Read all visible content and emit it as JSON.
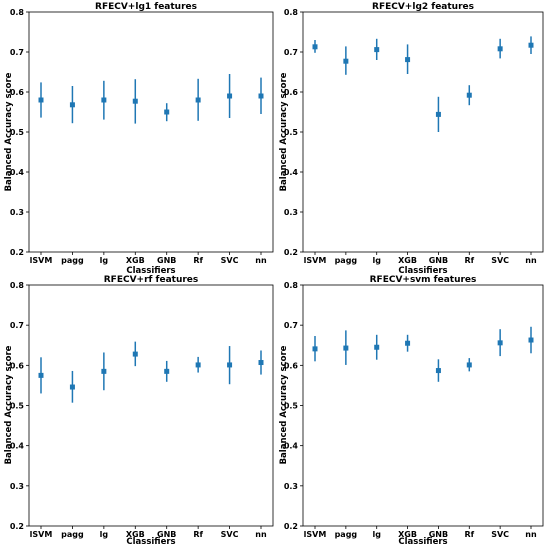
{
  "chart_data": [
    {
      "type": "scatter",
      "title": "RFECV+lg1 features",
      "xlabel": "Classifiers",
      "ylabel": "Balanced Accuracy score",
      "ylim": [
        0.2,
        0.8
      ],
      "yticks": [
        "0.2",
        "0.3",
        "0.4",
        "0.5",
        "0.6",
        "0.7",
        "0.8"
      ],
      "categories": [
        "lSVM",
        "pagg",
        "lg",
        "XGB",
        "GNB",
        "Rf",
        "SVC",
        "nn"
      ],
      "values": [
        0.58,
        0.568,
        0.58,
        0.577,
        0.55,
        0.58,
        0.59,
        0.59
      ],
      "lower": [
        0.536,
        0.522,
        0.531,
        0.521,
        0.527,
        0.528,
        0.535,
        0.545
      ],
      "upper": [
        0.624,
        0.615,
        0.628,
        0.632,
        0.572,
        0.633,
        0.645,
        0.636
      ],
      "color": "#1f77b4",
      "grid": false
    },
    {
      "type": "scatter",
      "title": "RFECV+lg2 features",
      "xlabel": "Classifiers",
      "ylabel": "Balanced Accuracy score",
      "ylim": [
        0.2,
        0.8
      ],
      "yticks": [
        "0.2",
        "0.3",
        "0.4",
        "0.5",
        "0.6",
        "0.7",
        "0.8"
      ],
      "categories": [
        "lSVM",
        "pagg",
        "lg",
        "XGB",
        "GNB",
        "Rf",
        "SVC",
        "nn"
      ],
      "values": [
        0.713,
        0.677,
        0.706,
        0.681,
        0.544,
        0.592,
        0.708,
        0.717
      ],
      "lower": [
        0.698,
        0.643,
        0.68,
        0.645,
        0.5,
        0.567,
        0.684,
        0.695
      ],
      "upper": [
        0.73,
        0.714,
        0.733,
        0.719,
        0.588,
        0.617,
        0.733,
        0.739
      ],
      "color": "#1f77b4",
      "grid": false
    },
    {
      "type": "scatter",
      "title": "RFECV+rf features",
      "xlabel": "Classifiers",
      "ylabel": "Balanced Accuracy score",
      "ylim": [
        0.2,
        0.8
      ],
      "yticks": [
        "0.2",
        "0.3",
        "0.4",
        "0.5",
        "0.6",
        "0.7",
        "0.8"
      ],
      "categories": [
        "lSVM",
        "pagg",
        "lg",
        "XGB",
        "GNB",
        "Rf",
        "SVC",
        "nn"
      ],
      "values": [
        0.575,
        0.546,
        0.585,
        0.628,
        0.585,
        0.601,
        0.601,
        0.607
      ],
      "lower": [
        0.53,
        0.507,
        0.538,
        0.598,
        0.559,
        0.582,
        0.553,
        0.577
      ],
      "upper": [
        0.62,
        0.586,
        0.632,
        0.659,
        0.611,
        0.621,
        0.648,
        0.637
      ],
      "color": "#1f77b4",
      "grid": false
    },
    {
      "type": "scatter",
      "title": "RFECV+svm features",
      "xlabel": "Classifiers",
      "ylabel": "Balanced Accuracy score",
      "ylim": [
        0.2,
        0.8
      ],
      "yticks": [
        "0.2",
        "0.3",
        "0.4",
        "0.5",
        "0.6",
        "0.7",
        "0.8"
      ],
      "categories": [
        "lSVM",
        "pagg",
        "lg",
        "XGB",
        "GNB",
        "Rf",
        "SVC",
        "nn"
      ],
      "values": [
        0.641,
        0.643,
        0.645,
        0.655,
        0.587,
        0.601,
        0.656,
        0.663
      ],
      "lower": [
        0.61,
        0.601,
        0.614,
        0.634,
        0.559,
        0.585,
        0.623,
        0.63
      ],
      "upper": [
        0.673,
        0.687,
        0.676,
        0.676,
        0.615,
        0.618,
        0.69,
        0.696
      ],
      "color": "#1f77b4",
      "grid": false
    }
  ]
}
